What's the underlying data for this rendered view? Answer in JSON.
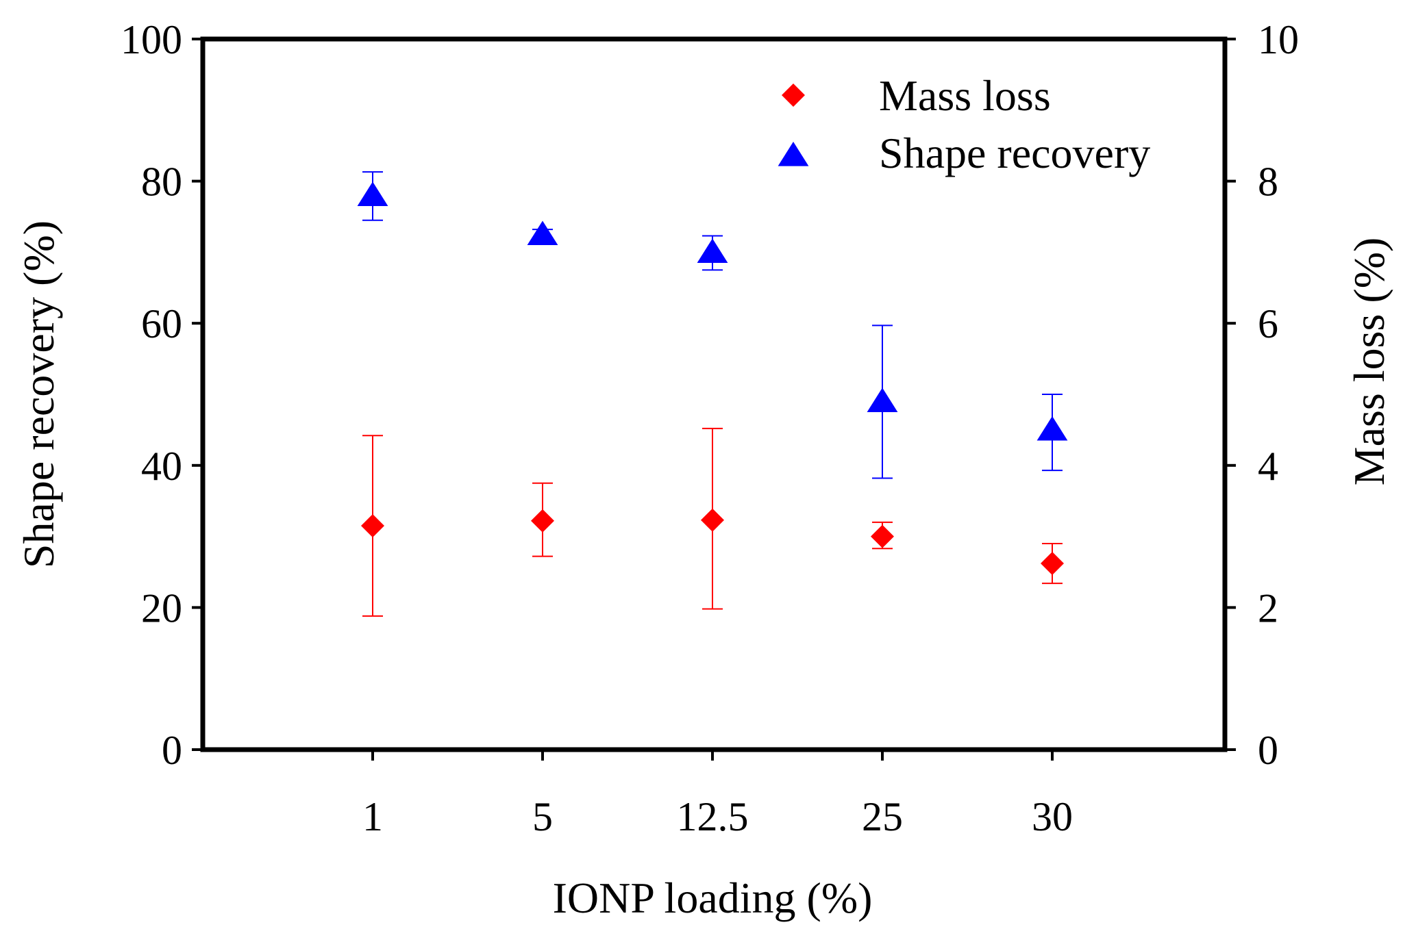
{
  "chart_data": {
    "type": "scatter",
    "categories": [
      "1",
      "5",
      "12.5",
      "25",
      "30"
    ],
    "xlabel": "IONP loading (%)",
    "ylabel_left": "Shape recovery (%)",
    "ylabel_right": "Mass loss (%)",
    "ylim_left": [
      0,
      100
    ],
    "ylim_right": [
      0,
      10
    ],
    "yticks_left": [
      "0",
      "20",
      "40",
      "60",
      "80",
      "100"
    ],
    "yticks_right": [
      "0",
      "2",
      "4",
      "6",
      "8",
      "10"
    ],
    "grid": false,
    "legend_position": "top-right",
    "series": [
      {
        "name": "Mass loss",
        "axis": "right",
        "marker": "diamond",
        "color": "#ff0000",
        "values": [
          3.15,
          3.22,
          3.23,
          3.0,
          2.62
        ],
        "err_low": [
          1.88,
          2.72,
          1.98,
          2.83,
          2.34
        ],
        "err_high": [
          4.42,
          3.75,
          4.52,
          3.2,
          2.9
        ]
      },
      {
        "name": "Shape recovery",
        "axis": "left",
        "marker": "triangle",
        "color": "#0000ff",
        "values": [
          78,
          72.5,
          70,
          49,
          45
        ],
        "err_low": [
          74.5,
          72,
          67.5,
          38.2,
          39.3
        ],
        "err_high": [
          81.3,
          73.2,
          72.3,
          59.7,
          50
        ]
      }
    ]
  }
}
